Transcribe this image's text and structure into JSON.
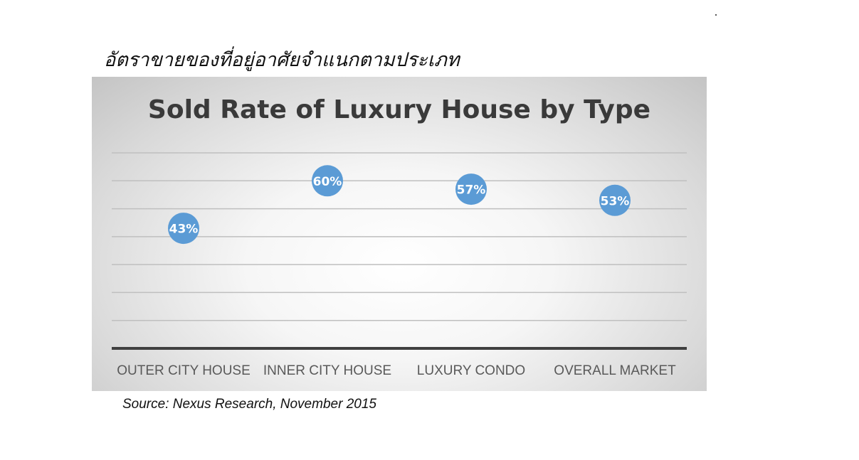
{
  "heading": "อัตราขายของที่อยู่อาศัยจำแนกตามประเภท",
  "source": "Source: Nexus Research, November 2015",
  "colors": {
    "marker": "#5b9bd5",
    "gridline": "#bfbfbf",
    "axis": "#404040",
    "label_text": "#595959",
    "title_text": "#3a3a3a"
  },
  "chart_data": {
    "type": "scatter",
    "title": "Sold Rate of Luxury House by Type",
    "categories": [
      "OUTER CITY HOUSE",
      "INNER CITY HOUSE",
      "LUXURY CONDO",
      "OVERALL MARKET"
    ],
    "values": [
      43,
      60,
      57,
      53
    ],
    "data_labels": [
      "43%",
      "60%",
      "57%",
      "53%"
    ],
    "ylim": [
      0,
      70
    ],
    "grid": true,
    "legend": "none",
    "xlabel": "",
    "ylabel": ""
  }
}
